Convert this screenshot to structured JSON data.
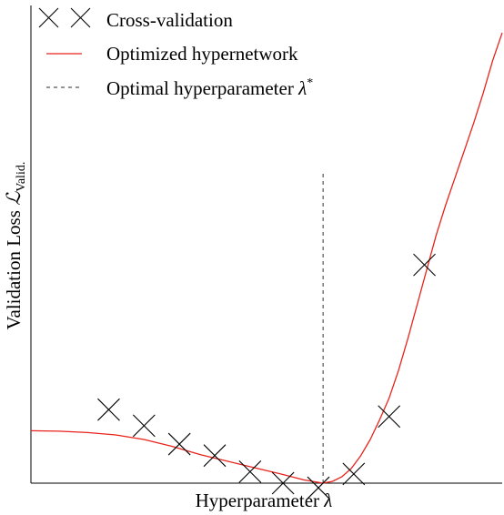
{
  "chart_data": {
    "type": "line",
    "title": "",
    "xlabel": "Hyperparameter λ",
    "ylabel_prefix": "Validation Loss ",
    "ylabel_symbol": "ℒ",
    "ylabel_subscript": "Valid.",
    "xlim": [
      0,
      10
    ],
    "ylim": [
      0,
      10
    ],
    "grid": false,
    "legend_position": "top-left",
    "legend": [
      {
        "label": "Cross-validation",
        "style": "x-marker",
        "color": "#000000"
      },
      {
        "label": "Optimized hypernetwork",
        "style": "solid",
        "color": "#e8231b"
      },
      {
        "label_prefix": "Optimal hyperparameter ",
        "label_symbol": "λ",
        "label_superscript": "*",
        "style": "dashed",
        "color": "#555555"
      }
    ],
    "series": [
      {
        "kind": "scatter",
        "marker": "x",
        "color": "#000000",
        "x": [
          1.65,
          2.4,
          3.15,
          3.9,
          4.65,
          5.35,
          6.1,
          6.85,
          7.6,
          8.35
        ],
        "y": [
          1.6,
          1.25,
          0.85,
          0.6,
          0.25,
          0.0,
          -0.1,
          0.2,
          1.45,
          4.75
        ]
      },
      {
        "kind": "line",
        "color": "#e8231b",
        "x": [
          0,
          0.6,
          1.2,
          1.8,
          2.4,
          3.0,
          3.6,
          4.2,
          4.8,
          5.3,
          5.8,
          6.2,
          6.4,
          6.6,
          6.8,
          7.0,
          7.2,
          7.4,
          7.6,
          7.8,
          8.0,
          8.2,
          8.4,
          8.6,
          8.8,
          9.0,
          9.2,
          9.4,
          9.6,
          9.8,
          10.0
        ],
        "y": [
          1.14,
          1.13,
          1.1,
          1.05,
          0.95,
          0.8,
          0.62,
          0.47,
          0.32,
          0.2,
          0.07,
          0.0,
          0.04,
          0.14,
          0.32,
          0.6,
          0.95,
          1.38,
          1.85,
          2.45,
          3.15,
          3.9,
          4.65,
          5.4,
          6.05,
          6.65,
          7.25,
          7.85,
          8.5,
          9.2,
          9.8
        ]
      },
      {
        "kind": "vline",
        "color": "#555555",
        "dash": true,
        "x": 6.2,
        "y_range": [
          0,
          6.75
        ]
      }
    ]
  }
}
